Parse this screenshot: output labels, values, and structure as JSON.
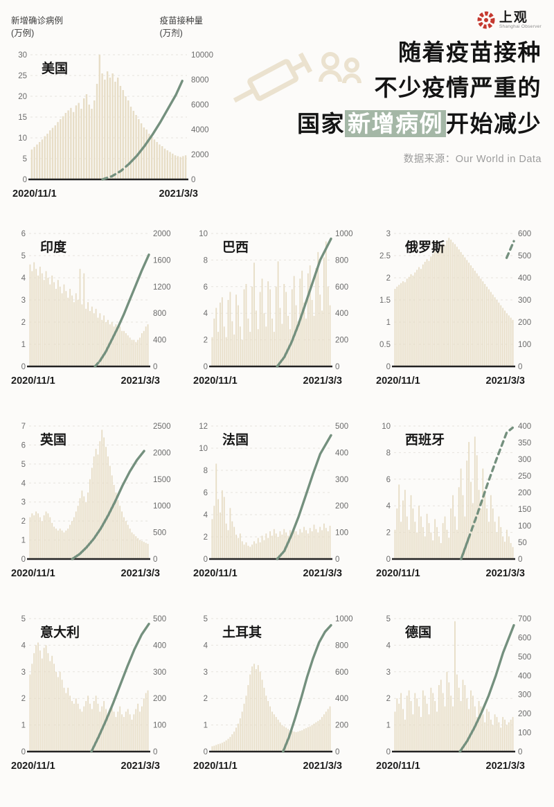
{
  "header": {
    "left_axis_title": "新增确诊病例",
    "left_axis_unit": "(万例)",
    "right_axis_title": "疫苗接种量",
    "right_axis_unit": "(万剂)",
    "logo_text": "上观",
    "logo_subtext": "Shanghai Observer",
    "source": "数据来源：Our World in Data"
  },
  "title": {
    "line1": "随着疫苗接种",
    "line2": "不少疫情严重的",
    "line3_prefix": "国家",
    "line3_highlight": "新增病例",
    "line3_suffix": "开始减少"
  },
  "colors": {
    "bar": "#e7ddc6",
    "line": "#74907e",
    "highlight": "#a4b7a6",
    "logo_red": "#c5392f",
    "axis": "#222222",
    "tick_text": "#6b6b6b",
    "grid": "#e6e3dd"
  },
  "chart_data": [
    {
      "name": "usa",
      "label": "美国",
      "type": "bar+line",
      "x_labels": [
        "2020/11/1",
        "2021/3/3"
      ],
      "left_max": 30,
      "left_ticks": [
        30,
        25,
        20,
        15,
        10,
        5,
        0
      ],
      "right_max": 10000,
      "right_ticks": [
        10000,
        8000,
        6000,
        4000,
        2000,
        0
      ],
      "bars": [
        7.2,
        7.8,
        8.4,
        9,
        9.6,
        10.4,
        11,
        11.8,
        12.4,
        13,
        13.8,
        14.5,
        15.2,
        16,
        16.6,
        17.2,
        16.2,
        17.8,
        18.4,
        17,
        19.5,
        20.5,
        18,
        17,
        19,
        23,
        30,
        25.5,
        24,
        26,
        24.5,
        25.5,
        23.5,
        24.5,
        22.5,
        21.5,
        20,
        19,
        17.5,
        16.5,
        15.5,
        14.5,
        13.5,
        12.5,
        12,
        11,
        10.2,
        9.6,
        9,
        8.4,
        8,
        7.4,
        7,
        6.6,
        6.2,
        5.8,
        5.6,
        5.4,
        5.6,
        5.8
      ],
      "line_segments": [
        {
          "dashed": true,
          "points": [
            [
              0.46,
              0
            ],
            [
              0.52,
              250
            ],
            [
              0.58,
              700
            ],
            [
              0.63,
              1250
            ]
          ]
        },
        {
          "dashed": false,
          "points": [
            [
              0.63,
              1250
            ],
            [
              0.68,
              1900
            ],
            [
              0.73,
              2700
            ],
            [
              0.78,
              3600
            ],
            [
              0.83,
              4600
            ],
            [
              0.88,
              5700
            ],
            [
              0.93,
              6800
            ],
            [
              0.97,
              7900
            ]
          ]
        }
      ]
    },
    {
      "name": "india",
      "label": "印度",
      "type": "bar+line",
      "x_labels": [
        "2020/11/1",
        "2021/3/3"
      ],
      "left_max": 6,
      "left_ticks": [
        6,
        5,
        4,
        3,
        2,
        1,
        0
      ],
      "right_max": 2000,
      "right_ticks": [
        2000,
        1600,
        1200,
        800,
        400,
        0
      ],
      "bars": [
        4.6,
        4.3,
        4.7,
        4.4,
        4.1,
        4.5,
        4.2,
        3.9,
        4.3,
        4,
        3.7,
        4.1,
        3.8,
        3.5,
        3.9,
        3.6,
        3.3,
        3.7,
        3.4,
        3.1,
        3.5,
        3.2,
        2.9,
        3.3,
        3,
        4.4,
        2.8,
        4.2,
        2.6,
        2.9,
        2.5,
        2.7,
        2.4,
        2.6,
        2.2,
        2.4,
        2.1,
        2.3,
        2,
        2.1,
        1.9,
        2,
        1.8,
        1.9,
        1.7,
        1.8,
        1.6,
        1.6,
        1.5,
        1.4,
        1.3,
        1.2,
        1.2,
        1.1,
        1.2,
        1.3,
        1.5,
        1.6,
        1.8,
        1.9
      ],
      "line_segments": [
        {
          "dashed": true,
          "points": [
            [
              0.55,
              0
            ],
            [
              0.59,
              80
            ]
          ]
        },
        {
          "dashed": false,
          "points": [
            [
              0.59,
              80
            ],
            [
              0.64,
              220
            ],
            [
              0.69,
              400
            ],
            [
              0.74,
              580
            ],
            [
              0.79,
              780
            ],
            [
              0.84,
              1000
            ],
            [
              0.89,
              1220
            ],
            [
              0.94,
              1440
            ],
            [
              1.0,
              1680
            ]
          ]
        }
      ]
    },
    {
      "name": "brazil",
      "label": "巴西",
      "type": "bar+line",
      "x_labels": [
        "2020/11/1",
        "2021/3/3"
      ],
      "left_max": 10,
      "left_ticks": [
        10,
        8,
        6,
        4,
        2,
        0
      ],
      "right_max": 1000,
      "right_ticks": [
        1000,
        800,
        600,
        400,
        200,
        0
      ],
      "bars": [
        2.2,
        3.6,
        4.4,
        2.6,
        4.8,
        5.2,
        3,
        2.2,
        5,
        5.6,
        3.4,
        2.4,
        5.4,
        4.6,
        3,
        2,
        5.8,
        6.2,
        3.6,
        2.6,
        6,
        7.8,
        4.2,
        2.8,
        5.6,
        6.6,
        4,
        3,
        6.4,
        5.8,
        3.6,
        2.6,
        6,
        7.9,
        4.4,
        3.2,
        6.2,
        5.6,
        3.8,
        2.8,
        5.8,
        6.8,
        4.6,
        3.4,
        6.6,
        7.2,
        4.8,
        3.6,
        7,
        7.6,
        5,
        3.8,
        7.4,
        8.6,
        5.4,
        4.2,
        8.2,
        9.4,
        6,
        4.6
      ],
      "line_segments": [
        {
          "dashed": false,
          "points": [
            [
              0.55,
              0
            ],
            [
              0.61,
              70
            ],
            [
              0.67,
              180
            ],
            [
              0.73,
              320
            ],
            [
              0.79,
              480
            ],
            [
              0.85,
              640
            ],
            [
              0.91,
              800
            ],
            [
              1.0,
              960
            ]
          ]
        }
      ]
    },
    {
      "name": "russia",
      "label": "俄罗斯",
      "type": "bar+line",
      "x_labels": [
        "2020/11/1",
        "2021/3/3"
      ],
      "left_max": 3,
      "left_ticks": [
        3,
        2.5,
        2,
        1.5,
        1,
        0.5,
        0
      ],
      "right_max": 600,
      "right_ticks": [
        600,
        500,
        400,
        300,
        200,
        100,
        0
      ],
      "bars": [
        1.75,
        1.8,
        1.84,
        1.88,
        1.92,
        1.9,
        1.98,
        2.02,
        2.08,
        2.05,
        2.12,
        2.18,
        2.24,
        2.2,
        2.3,
        2.36,
        2.42,
        2.38,
        2.48,
        2.54,
        2.6,
        2.56,
        2.66,
        2.72,
        2.78,
        2.74,
        2.84,
        2.9,
        2.86,
        2.8,
        2.76,
        2.7,
        2.64,
        2.58,
        2.52,
        2.46,
        2.4,
        2.34,
        2.28,
        2.22,
        2.16,
        2.1,
        2.04,
        1.98,
        1.92,
        1.86,
        1.8,
        1.74,
        1.68,
        1.62,
        1.56,
        1.5,
        1.44,
        1.38,
        1.32,
        1.26,
        1.2,
        1.15,
        1.1,
        1.05
      ],
      "line_segments": [
        {
          "dashed": true,
          "points": [
            [
              0.94,
              490
            ],
            [
              1.0,
              565
            ]
          ]
        }
      ]
    },
    {
      "name": "uk",
      "label": "英国",
      "type": "bar+line",
      "x_labels": [
        "2020/11/1",
        "2021/3/3"
      ],
      "left_max": 7,
      "left_ticks": [
        7,
        6,
        5,
        4,
        3,
        2,
        1,
        0
      ],
      "right_max": 2500,
      "right_ticks": [
        2500,
        2000,
        1500,
        1000,
        500,
        0
      ],
      "bars": [
        2.2,
        2.4,
        2.3,
        2.5,
        2.4,
        2.2,
        2,
        2.3,
        2.5,
        2.4,
        2.2,
        1.9,
        1.7,
        1.6,
        1.5,
        1.6,
        1.5,
        1.4,
        1.5,
        1.6,
        1.8,
        2,
        2.2,
        2.5,
        2.8,
        3.2,
        3.6,
        3.3,
        3,
        3.5,
        4.2,
        4.8,
        5.4,
        5.8,
        5.5,
        6.2,
        6.8,
        6.4,
        5.9,
        5.4,
        4.9,
        4.4,
        3.9,
        3.5,
        3.1,
        2.8,
        2.5,
        2.2,
        2,
        1.8,
        1.6,
        1.4,
        1.3,
        1.2,
        1.1,
        1,
        0.95,
        0.9,
        0.85,
        0.8
      ],
      "line_segments": [
        {
          "dashed": false,
          "points": [
            [
              0.36,
              0
            ],
            [
              0.42,
              90
            ],
            [
              0.48,
              220
            ],
            [
              0.54,
              380
            ],
            [
              0.6,
              580
            ],
            [
              0.66,
              820
            ],
            [
              0.72,
              1090
            ],
            [
              0.78,
              1380
            ],
            [
              0.84,
              1640
            ],
            [
              0.9,
              1860
            ],
            [
              0.96,
              2030
            ]
          ]
        }
      ]
    },
    {
      "name": "france",
      "label": "法国",
      "type": "bar+line",
      "x_labels": [
        "2020/11/1",
        "2021/3/3"
      ],
      "left_max": 12,
      "left_ticks": [
        12,
        10,
        8,
        6,
        4,
        2,
        0
      ],
      "right_max": 500,
      "right_ticks": [
        500,
        400,
        300,
        200,
        100,
        0
      ],
      "bars": [
        3.6,
        4.8,
        8.6,
        5.4,
        4.2,
        6.2,
        5.6,
        3.2,
        2.6,
        4.6,
        3.4,
        2.9,
        2.2,
        1.9,
        2.3,
        1.6,
        1.3,
        1.5,
        1.2,
        1.1,
        1.3,
        1.6,
        1.4,
        1.9,
        1.5,
        2.1,
        1.7,
        2.3,
        1.9,
        2.5,
        2.1,
        2.7,
        2.3,
        2,
        2.5,
        2.2,
        2.7,
        2.4,
        2.1,
        2.6,
        2.3,
        2.8,
        2.5,
        2.2,
        2.7,
        2.4,
        2.9,
        2.6,
        2.3,
        2.8,
        2.5,
        3.1,
        2.7,
        2.4,
        2.9,
        2.6,
        3.2,
        2.8,
        2.5,
        3
      ],
      "line_segments": [
        {
          "dashed": false,
          "points": [
            [
              0.55,
              0
            ],
            [
              0.61,
              30
            ],
            [
              0.67,
              90
            ],
            [
              0.73,
              160
            ],
            [
              0.79,
              240
            ],
            [
              0.85,
              320
            ],
            [
              0.91,
              395
            ],
            [
              1.0,
              465
            ]
          ]
        }
      ]
    },
    {
      "name": "spain",
      "label": "西班牙",
      "type": "bar+line",
      "x_labels": [
        "2020/11/1",
        "2021/3/3"
      ],
      "left_max": 10,
      "left_ticks": [
        10,
        8,
        6,
        4,
        2,
        0
      ],
      "right_max": 400,
      "right_ticks": [
        400,
        350,
        300,
        250,
        200,
        150,
        100,
        50,
        0
      ],
      "bars": [
        2.2,
        3.8,
        5.6,
        2.8,
        4.4,
        5.2,
        3.2,
        2.2,
        4.8,
        3.8,
        2.8,
        2,
        4,
        3.2,
        2.4,
        1.7,
        3.4,
        2.7,
        2,
        1.4,
        3,
        2.4,
        1.7,
        1.2,
        2.7,
        3.2,
        2.2,
        1.6,
        3.8,
        4.8,
        3.2,
        2.2,
        5.4,
        6.8,
        4.8,
        3.2,
        7.4,
        8.8,
        5.8,
        4.2,
        9.2,
        7.8,
        5.2,
        3.8,
        6.8,
        5.2,
        3.8,
        2.8,
        4.8,
        3.8,
        2.8,
        2,
        3.2,
        2.4,
        1.7,
        1.3,
        2.2,
        1.7,
        1.2,
        0.9
      ],
      "line_segments": [
        {
          "dashed": false,
          "points": [
            [
              0.56,
              0
            ],
            [
              0.62,
              60
            ]
          ]
        },
        {
          "dashed": true,
          "points": [
            [
              0.62,
              60
            ],
            [
              0.7,
              140
            ],
            [
              0.78,
              225
            ],
            [
              0.86,
              305
            ],
            [
              0.94,
              380
            ],
            [
              0.99,
              395
            ]
          ]
        }
      ]
    },
    {
      "name": "italy",
      "label": "意大利",
      "type": "bar+line",
      "x_labels": [
        "2020/11/1",
        "2021/3/3"
      ],
      "left_max": 5,
      "left_ticks": [
        5,
        4,
        3,
        2,
        1,
        0
      ],
      "right_max": 500,
      "right_ticks": [
        500,
        400,
        300,
        200,
        100,
        0
      ],
      "bars": [
        2.9,
        3.3,
        3.7,
        4,
        4.1,
        3.8,
        3.5,
        3.9,
        4,
        3.7,
        3.4,
        3.6,
        3.3,
        3,
        2.8,
        3,
        2.7,
        2.4,
        2.2,
        2.4,
        2.1,
        1.9,
        1.8,
        2,
        1.8,
        1.6,
        1.5,
        1.7,
        1.9,
        2.1,
        1.8,
        1.6,
        1.9,
        2.1,
        1.8,
        1.5,
        1.7,
        1.9,
        1.6,
        1.4,
        1.6,
        1.8,
        1.5,
        1.3,
        1.5,
        1.7,
        1.4,
        1.3,
        1.5,
        1.6,
        1.4,
        1.2,
        1.4,
        1.6,
        1.8,
        1.5,
        1.7,
        2,
        2.2,
        2.3
      ],
      "line_segments": [
        {
          "dashed": false,
          "points": [
            [
              0.52,
              0
            ],
            [
              0.58,
              55
            ],
            [
              0.64,
              115
            ],
            [
              0.7,
              180
            ],
            [
              0.76,
              250
            ],
            [
              0.82,
              320
            ],
            [
              0.88,
              385
            ],
            [
              0.94,
              440
            ],
            [
              1.0,
              480
            ]
          ]
        }
      ]
    },
    {
      "name": "turkey",
      "label": "土耳其",
      "type": "bar+line",
      "x_labels": [
        "2020/11/1",
        "2021/3/3"
      ],
      "left_max": 5,
      "left_ticks": [
        5,
        4,
        3,
        2,
        1,
        0
      ],
      "right_max": 1000,
      "right_ticks": [
        1000,
        800,
        600,
        400,
        200,
        0
      ],
      "bars": [
        0.2,
        0.22,
        0.25,
        0.28,
        0.3,
        0.33,
        0.37,
        0.42,
        0.48,
        0.55,
        0.65,
        0.75,
        0.9,
        1.05,
        1.25,
        1.5,
        1.8,
        2.1,
        2.5,
        2.9,
        3.2,
        3.3,
        3.1,
        3.25,
        3,
        2.7,
        2.4,
        2.1,
        1.9,
        1.7,
        1.5,
        1.4,
        1.3,
        1.2,
        1.1,
        1,
        0.95,
        0.9,
        0.85,
        0.8,
        0.78,
        0.75,
        0.73,
        0.75,
        0.78,
        0.8,
        0.85,
        0.88,
        0.92,
        0.95,
        1,
        1.05,
        1.1,
        1.15,
        1.2,
        1.3,
        1.4,
        1.5,
        1.6,
        1.7
      ],
      "line_segments": [
        {
          "dashed": false,
          "points": [
            [
              0.6,
              0
            ],
            [
              0.65,
              110
            ],
            [
              0.7,
              250
            ],
            [
              0.75,
              400
            ],
            [
              0.8,
              560
            ],
            [
              0.85,
              700
            ],
            [
              0.9,
              820
            ],
            [
              0.95,
              900
            ],
            [
              1.0,
              950
            ]
          ]
        }
      ]
    },
    {
      "name": "germany",
      "label": "德国",
      "type": "bar+line",
      "x_labels": [
        "2020/11/1",
        "2021/3/3"
      ],
      "left_max": 5,
      "left_ticks": [
        5,
        4,
        3,
        2,
        1,
        0
      ],
      "right_max": 700,
      "right_ticks": [
        700,
        600,
        500,
        400,
        300,
        200,
        100,
        0
      ],
      "bars": [
        1.5,
        2,
        1.8,
        2.2,
        1.6,
        1.2,
        2.1,
        2.3,
        1.9,
        1.4,
        2.2,
        2,
        1.7,
        1.3,
        2.3,
        2.1,
        1.8,
        1.4,
        2.4,
        2.2,
        1.9,
        1.5,
        2.5,
        2.7,
        2.2,
        1.7,
        3,
        2.6,
        2.1,
        1.7,
        4.9,
        2.9,
        2.4,
        1.9,
        2.7,
        2.5,
        2,
        1.6,
        2.3,
        2.1,
        1.7,
        1.3,
        1.9,
        1.7,
        1.4,
        1.1,
        1.6,
        1.5,
        1.2,
        1,
        1.4,
        1.3,
        1.1,
        0.9,
        1.3,
        1.2,
        1,
        1.1,
        1.2,
        1.3
      ],
      "line_segments": [
        {
          "dashed": false,
          "points": [
            [
              0.55,
              0
            ],
            [
              0.61,
              55
            ],
            [
              0.67,
              125
            ],
            [
              0.73,
              205
            ],
            [
              0.79,
              295
            ],
            [
              0.85,
              400
            ],
            [
              0.91,
              520
            ],
            [
              1.0,
              665
            ]
          ]
        }
      ]
    }
  ]
}
